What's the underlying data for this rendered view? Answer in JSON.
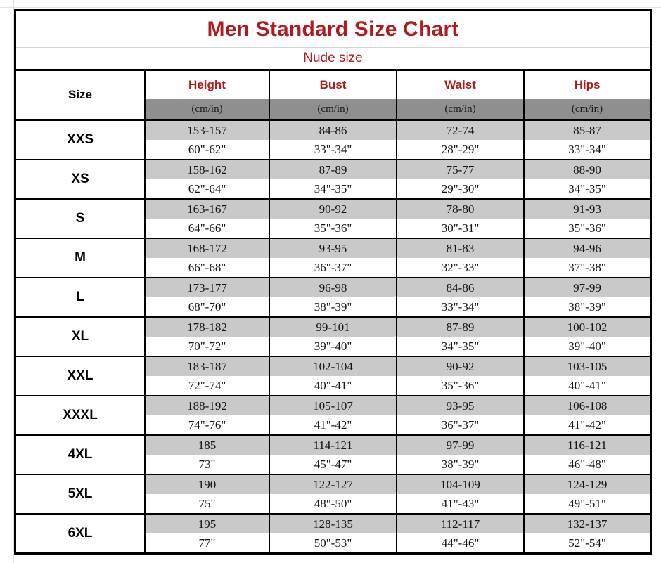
{
  "chart_data": {
    "type": "table",
    "title": "Men Standard Size Chart",
    "subtitle": "Nude size",
    "columns": [
      "Size",
      "Height",
      "Bust",
      "Waist",
      "Hips"
    ],
    "unit_label": "(cm/in)",
    "rows": [
      {
        "size": "XXS",
        "cm": [
          "153-157",
          "84-86",
          "72-74",
          "85-87"
        ],
        "inch": [
          "60\"-62\"",
          "33\"-34\"",
          "28\"-29\"",
          "33\"-34\""
        ]
      },
      {
        "size": "XS",
        "cm": [
          "158-162",
          "87-89",
          "75-77",
          "88-90"
        ],
        "inch": [
          "62\"-64\"",
          "34\"-35\"",
          "29\"-30\"",
          "34\"-35\""
        ]
      },
      {
        "size": "S",
        "cm": [
          "163-167",
          "90-92",
          "78-80",
          "91-93"
        ],
        "inch": [
          "64\"-66\"",
          "35\"-36\"",
          "30\"-31\"",
          "35\"-36\""
        ]
      },
      {
        "size": "M",
        "cm": [
          "168-172",
          "93-95",
          "81-83",
          "94-96"
        ],
        "inch": [
          "66\"-68\"",
          "36\"-37\"",
          "32\"-33\"",
          "37\"-38\""
        ]
      },
      {
        "size": "L",
        "cm": [
          "173-177",
          "96-98",
          "84-86",
          "97-99"
        ],
        "inch": [
          "68\"-70\"",
          "38\"-39\"",
          "33\"-34\"",
          "38\"-39\""
        ]
      },
      {
        "size": "XL",
        "cm": [
          "178-182",
          "99-101",
          "87-89",
          "100-102"
        ],
        "inch": [
          "70\"-72\"",
          "39\"-40\"",
          "34\"-35\"",
          "39\"-40\""
        ]
      },
      {
        "size": "XXL",
        "cm": [
          "183-187",
          "102-104",
          "90-92",
          "103-105"
        ],
        "inch": [
          "72\"-74\"",
          "40\"-41\"",
          "35\"-36\"",
          "40\"-41\""
        ]
      },
      {
        "size": "XXXL",
        "cm": [
          "188-192",
          "105-107",
          "93-95",
          "106-108"
        ],
        "inch": [
          "74\"-76\"",
          "41\"-42\"",
          "36\"-37\"",
          "41\"-42\""
        ]
      },
      {
        "size": "4XL",
        "cm": [
          "185",
          "114-121",
          "97-99",
          "116-121"
        ],
        "inch": [
          "73\"",
          "45\"-47\"",
          "38\"-39\"",
          "46\"-48\""
        ]
      },
      {
        "size": "5XL",
        "cm": [
          "190",
          "122-127",
          "104-109",
          "124-129"
        ],
        "inch": [
          "75\"",
          "48\"-50\"",
          "41\"-43\"",
          "49\"-51\""
        ]
      },
      {
        "size": "6XL",
        "cm": [
          "195",
          "128-135",
          "112-117",
          "132-137"
        ],
        "inch": [
          "77\"",
          "50\"-53\"",
          "44\"-46\"",
          "52\"-54\""
        ]
      }
    ],
    "layout": {
      "grid": "on",
      "cm_row_background": "#c9c9c9",
      "unit_band_background": "#8f8f8f"
    }
  },
  "colors": {
    "accent_red": "#b01b1e",
    "border_black": "#000000",
    "band_dark_gray": "#8f8f8f",
    "band_light_gray": "#c9c9c9"
  }
}
